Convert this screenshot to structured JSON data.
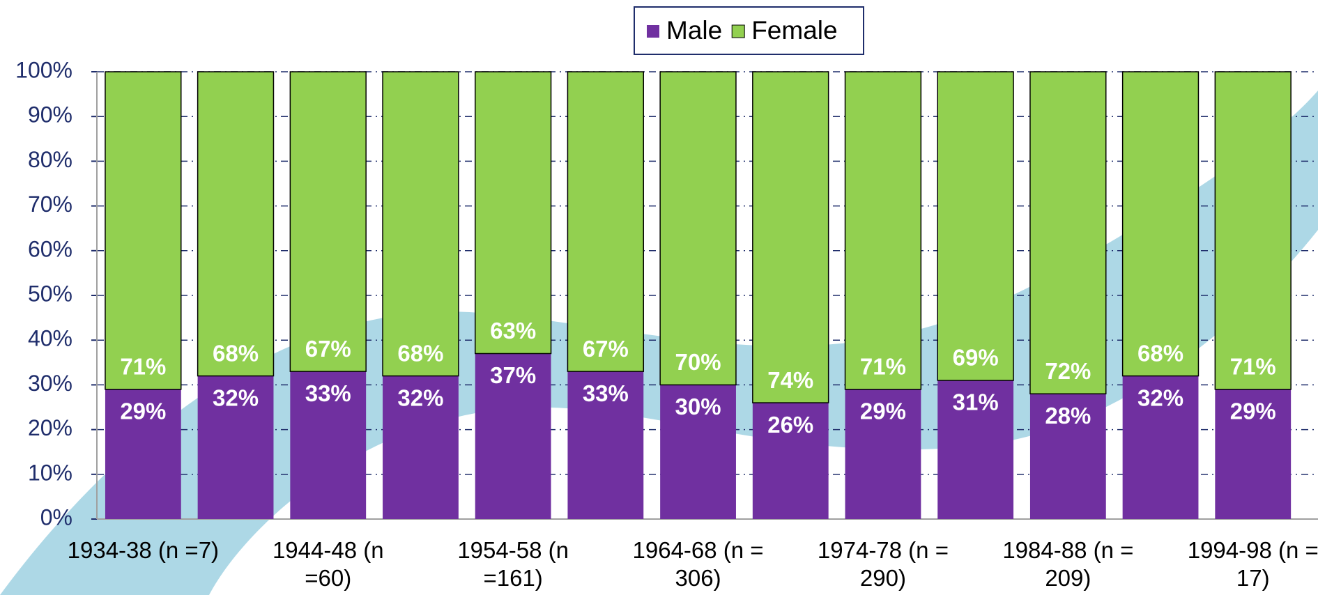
{
  "chart_data": {
    "type": "stacked_bar",
    "categories": [
      "1934-38 (n =7)",
      null,
      "1944-48 (n =60)",
      null,
      "1954-58 (n =161)",
      null,
      "1964-68 (n = 306)",
      null,
      "1974-78 (n = 290)",
      null,
      "1984-88 (n = 209)",
      null,
      "1994-98 (n = 17)"
    ],
    "series": [
      {
        "name": "Male",
        "color": "#7030a0",
        "values": [
          29,
          32,
          33,
          32,
          37,
          33,
          30,
          26,
          29,
          31,
          28,
          32,
          29
        ],
        "value_labels": [
          "29%",
          "32%",
          "33%",
          "32%",
          "37%",
          "33%",
          "30%",
          "26%",
          "29%",
          "31%",
          "28%",
          "32%",
          "29%"
        ]
      },
      {
        "name": "Female",
        "color": "#92d050",
        "values": [
          71,
          68,
          67,
          68,
          63,
          67,
          70,
          74,
          71,
          69,
          72,
          68,
          71
        ],
        "value_labels": [
          "71%",
          "68%",
          "67%",
          "68%",
          "63%",
          "67%",
          "70%",
          "74%",
          "71%",
          "69%",
          "72%",
          "68%",
          "71%"
        ]
      }
    ],
    "ylim": [
      0,
      100
    ],
    "yticks": [
      {
        "value": 0,
        "label": "0%"
      },
      {
        "value": 10,
        "label": "10%"
      },
      {
        "value": 20,
        "label": "20%"
      },
      {
        "value": 30,
        "label": "30%"
      },
      {
        "value": 40,
        "label": "40%"
      },
      {
        "value": 50,
        "label": "50%"
      },
      {
        "value": 60,
        "label": "60%"
      },
      {
        "value": 70,
        "label": "70%"
      },
      {
        "value": 80,
        "label": "80%"
      },
      {
        "value": 90,
        "label": "90%"
      },
      {
        "value": 100,
        "label": "100%"
      }
    ],
    "grid": true,
    "legend": "top"
  }
}
